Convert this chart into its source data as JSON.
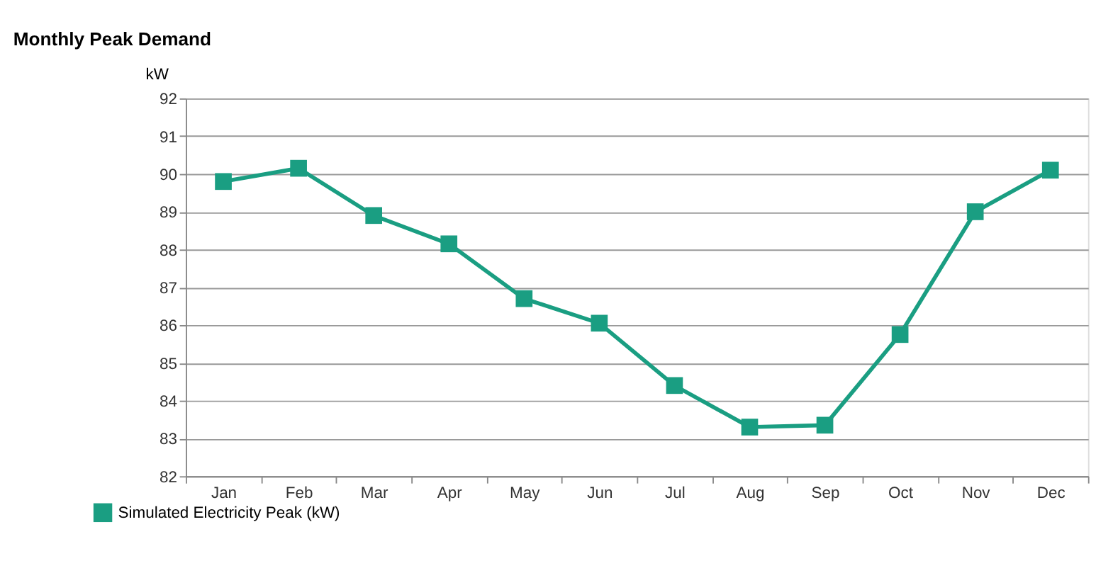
{
  "chart_data": {
    "type": "line",
    "title": "Monthly Peak Demand",
    "ylabel": "kW",
    "categories": [
      "Jan",
      "Feb",
      "Mar",
      "Apr",
      "May",
      "Jun",
      "Jul",
      "Aug",
      "Sep",
      "Oct",
      "Nov",
      "Dec"
    ],
    "series": [
      {
        "name": "Simulated Electricity Peak (kW)",
        "color": "#1a9e82",
        "values": [
          89.8,
          90.15,
          88.9,
          88.15,
          86.7,
          86.05,
          84.4,
          83.3,
          83.35,
          85.75,
          89.0,
          90.1
        ]
      }
    ],
    "ylim": [
      82,
      92
    ],
    "yticks": [
      82,
      83,
      84,
      85,
      86,
      87,
      88,
      89,
      90,
      91,
      92
    ],
    "grid": "y",
    "legend": "bottom left",
    "marker": "square",
    "line_style": "solid"
  }
}
